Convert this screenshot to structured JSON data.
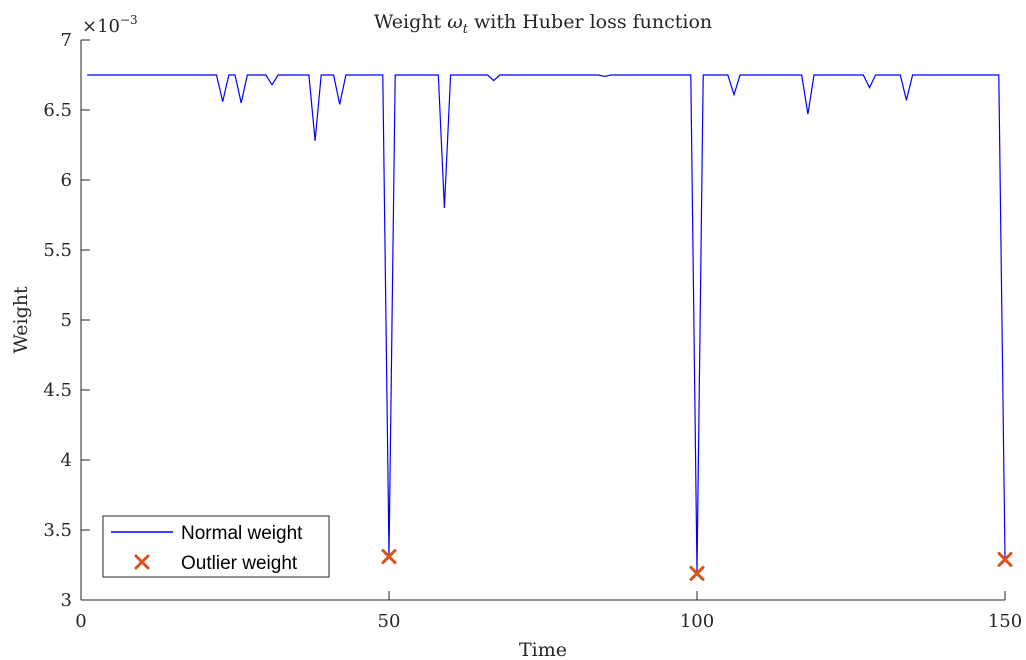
{
  "chart_data": {
    "type": "line",
    "title_prefix": "Weight ",
    "title_symbol": "ω",
    "title_subscript": "t",
    "title_suffix": " with Huber loss function",
    "xlabel": "Time",
    "ylabel": "Weight",
    "y_exponent_base": "×10",
    "y_exponent_power": "−3",
    "xlim": [
      0,
      150
    ],
    "ylim": [
      3,
      7
    ],
    "x_ticks": [
      0,
      50,
      100,
      150
    ],
    "x_tick_labels": [
      "0",
      "50",
      "100",
      "150"
    ],
    "y_ticks": [
      3,
      3.5,
      4,
      4.5,
      5,
      5.5,
      6,
      6.5,
      7
    ],
    "y_tick_labels": [
      "3",
      "3.5",
      "4",
      "4.5",
      "5",
      "5.5",
      "6",
      "6.5",
      "7"
    ],
    "grid": false,
    "legend_position": "bottom-left",
    "series": [
      {
        "name": "Normal weight",
        "style": "line",
        "color": "#0000ff",
        "x": [
          1,
          22,
          23,
          24,
          25,
          26,
          27,
          30,
          31,
          32,
          37,
          38,
          39,
          41,
          42,
          43,
          49,
          50,
          51,
          58,
          59,
          60,
          66,
          67,
          68,
          84,
          85,
          86,
          99,
          100,
          101,
          105,
          106,
          107,
          117,
          118,
          119,
          127,
          128,
          129,
          133,
          134,
          135,
          149,
          150
        ],
        "y": [
          6.75,
          6.75,
          6.56,
          6.75,
          6.75,
          6.55,
          6.75,
          6.75,
          6.68,
          6.75,
          6.75,
          6.28,
          6.75,
          6.75,
          6.54,
          6.75,
          6.75,
          3.32,
          6.75,
          6.75,
          5.8,
          6.75,
          6.75,
          6.71,
          6.75,
          6.75,
          6.74,
          6.75,
          6.75,
          3.2,
          6.75,
          6.75,
          6.61,
          6.75,
          6.75,
          6.47,
          6.75,
          6.75,
          6.66,
          6.75,
          6.75,
          6.57,
          6.75,
          6.75,
          3.3
        ]
      },
      {
        "name": "Outlier weight",
        "style": "marker-x",
        "color": "#d95319",
        "x": [
          50,
          100,
          150
        ],
        "y": [
          3.31,
          3.19,
          3.29
        ]
      }
    ]
  }
}
